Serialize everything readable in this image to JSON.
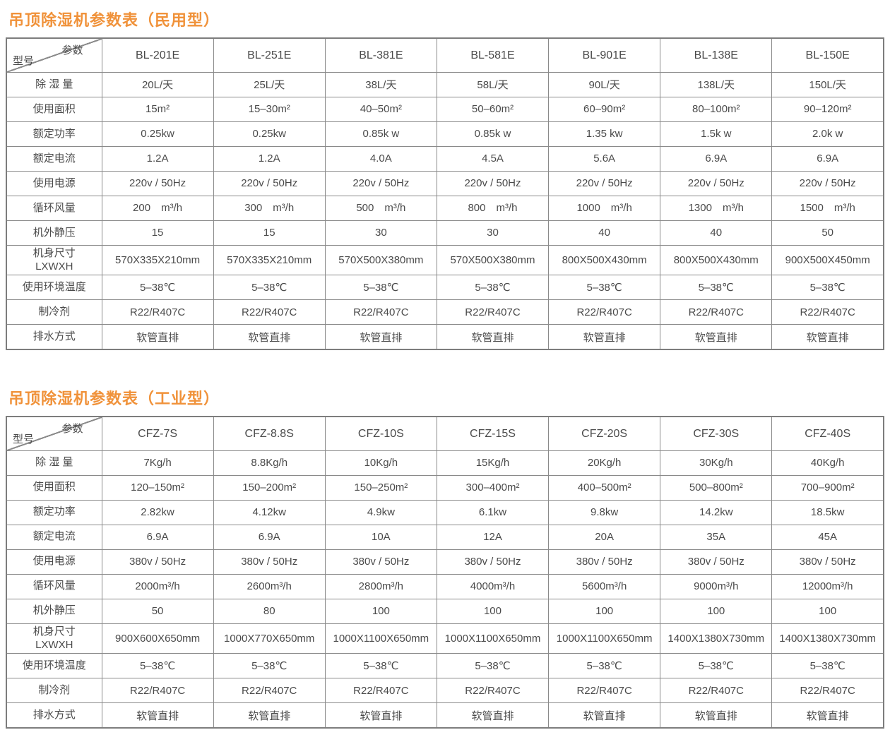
{
  "page": {
    "accent_color": "#f0923a",
    "border_color": "#8a8a8a"
  },
  "tables": [
    {
      "title": "吊顶除湿机参数表（民用型）",
      "corner_top": "参数",
      "corner_bottom": "型号",
      "models": [
        "BL-201E",
        "BL-251E",
        "BL-381E",
        "BL-581E",
        "BL-901E",
        "BL-138E",
        "BL-150E"
      ],
      "rows": [
        {
          "label": "除 湿 量",
          "values": [
            "20L/天",
            "25L/天",
            "38L/天",
            "58L/天",
            "90L/天",
            "138L/天",
            "150L/天"
          ]
        },
        {
          "label": "使用面积",
          "values": [
            "15m²",
            "15–30m²",
            "40–50m²",
            "50–60m²",
            "60–90m²",
            "80–100m²",
            "90–120m²"
          ]
        },
        {
          "label": "额定功率",
          "values": [
            "0.25kw",
            "0.25kw",
            "0.85k w",
            "0.85k w",
            "1.35 kw",
            "1.5k w",
            "2.0k w"
          ]
        },
        {
          "label": "额定电流",
          "values": [
            "1.2A",
            "1.2A",
            "4.0A",
            "4.5A",
            "5.6A",
            "6.9A",
            "6.9A"
          ]
        },
        {
          "label": "使用电源",
          "values": [
            "220v / 50Hz",
            "220v / 50Hz",
            "220v / 50Hz",
            "220v / 50Hz",
            "220v / 50Hz",
            "220v / 50Hz",
            "220v / 50Hz"
          ]
        },
        {
          "label": "循环风量",
          "values": [
            "200  m³/h",
            "300  m³/h",
            "500  m³/h",
            "800  m³/h",
            "1000  m³/h",
            "1300  m³/h",
            "1500  m³/h"
          ]
        },
        {
          "label": "机外静压",
          "values": [
            "15",
            "15",
            "30",
            "30",
            "40",
            "40",
            "50"
          ]
        },
        {
          "label": "机身尺寸\nLXWXH",
          "values": [
            "570X335X210mm",
            "570X335X210mm",
            "570X500X380mm",
            "570X500X380mm",
            "800X500X430mm",
            "800X500X430mm",
            "900X500X450mm"
          ]
        },
        {
          "label": "使用环境温度",
          "values": [
            "5–38℃",
            "5–38℃",
            "5–38℃",
            "5–38℃",
            "5–38℃",
            "5–38℃",
            "5–38℃"
          ]
        },
        {
          "label": "制冷剂",
          "values": [
            "R22/R407C",
            "R22/R407C",
            "R22/R407C",
            "R22/R407C",
            "R22/R407C",
            "R22/R407C",
            "R22/R407C"
          ]
        },
        {
          "label": "排水方式",
          "values": [
            "软管直排",
            "软管直排",
            "软管直排",
            "软管直排",
            "软管直排",
            "软管直排",
            "软管直排"
          ]
        }
      ]
    },
    {
      "title": "吊顶除湿机参数表（工业型）",
      "corner_top": "参数",
      "corner_bottom": "型号",
      "models": [
        "CFZ-7S",
        "CFZ-8.8S",
        "CFZ-10S",
        "CFZ-15S",
        "CFZ-20S",
        "CFZ-30S",
        "CFZ-40S"
      ],
      "rows": [
        {
          "label": "除 湿 量",
          "values": [
            "7Kg/h",
            "8.8Kg/h",
            "10Kg/h",
            "15Kg/h",
            "20Kg/h",
            "30Kg/h",
            "40Kg/h"
          ]
        },
        {
          "label": "使用面积",
          "values": [
            "120–150m²",
            "150–200m²",
            "150–250m²",
            "300–400m²",
            "400–500m²",
            "500–800m²",
            "700–900m²"
          ]
        },
        {
          "label": "额定功率",
          "values": [
            "2.82kw",
            "4.12kw",
            "4.9kw",
            "6.1kw",
            "9.8kw",
            "14.2kw",
            "18.5kw"
          ]
        },
        {
          "label": "额定电流",
          "values": [
            "6.9A",
            "6.9A",
            "10A",
            "12A",
            "20A",
            "35A",
            "45A"
          ]
        },
        {
          "label": "使用电源",
          "values": [
            "380v / 50Hz",
            "380v / 50Hz",
            "380v / 50Hz",
            "380v / 50Hz",
            "380v / 50Hz",
            "380v / 50Hz",
            "380v / 50Hz"
          ]
        },
        {
          "label": "循环风量",
          "values": [
            "2000m³/h",
            "2600m³/h",
            "2800m³/h",
            "4000m³/h",
            "5600m³/h",
            "9000m³/h",
            "12000m³/h"
          ]
        },
        {
          "label": "机外静压",
          "values": [
            "50",
            "80",
            "100",
            "100",
            "100",
            "100",
            "100"
          ]
        },
        {
          "label": "机身尺寸\nLXWXH",
          "values": [
            "900X600X650mm",
            "1000X770X650mm",
            "1000X1100X650mm",
            "1000X1100X650mm",
            "1000X1100X650mm",
            "1400X1380X730mm",
            "1400X1380X730mm"
          ]
        },
        {
          "label": "使用环境温度",
          "values": [
            "5–38℃",
            "5–38℃",
            "5–38℃",
            "5–38℃",
            "5–38℃",
            "5–38℃",
            "5–38℃"
          ]
        },
        {
          "label": "制冷剂",
          "values": [
            "R22/R407C",
            "R22/R407C",
            "R22/R407C",
            "R22/R407C",
            "R22/R407C",
            "R22/R407C",
            "R22/R407C"
          ]
        },
        {
          "label": "排水方式",
          "values": [
            "软管直排",
            "软管直排",
            "软管直排",
            "软管直排",
            "软管直排",
            "软管直排",
            "软管直排"
          ]
        }
      ]
    }
  ]
}
